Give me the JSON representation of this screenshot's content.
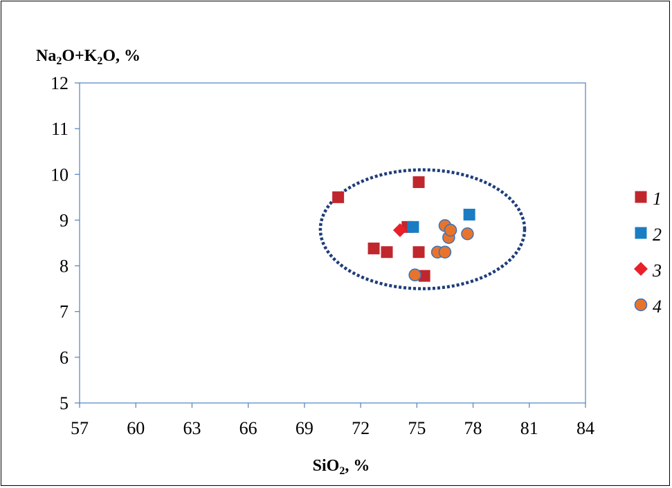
{
  "chart_data": {
    "type": "scatter",
    "x_axis": {
      "label": "SiO",
      "label_sub": "2",
      "label_tail": ", %",
      "range": [
        57,
        84
      ],
      "ticks": [
        "57",
        "60",
        "63",
        "66",
        "69",
        "72",
        "75",
        "78",
        "81",
        "84"
      ]
    },
    "y_axis": {
      "label_parts": [
        "Na",
        "2",
        "O+K",
        "2",
        "O, %"
      ],
      "range": [
        5,
        12
      ],
      "ticks": [
        "5",
        "6",
        "7",
        "8",
        "9",
        "10",
        "11",
        "12"
      ]
    },
    "grid": false,
    "legend_position": "right",
    "series": [
      {
        "name": "1",
        "marker": "square",
        "color": "#c0272d",
        "points": [
          [
            70.8,
            9.5
          ],
          [
            72.7,
            8.38
          ],
          [
            73.4,
            8.3
          ],
          [
            75.1,
            9.83
          ],
          [
            75.1,
            8.3
          ],
          [
            74.5,
            8.85
          ],
          [
            75.4,
            7.78
          ]
        ]
      },
      {
        "name": "2",
        "marker": "square",
        "color": "#1a7dc4",
        "points": [
          [
            74.8,
            8.85
          ],
          [
            77.8,
            9.12
          ]
        ]
      },
      {
        "name": "3",
        "marker": "diamond",
        "color": "#e8202a",
        "points": [
          [
            74.1,
            8.78
          ]
        ]
      },
      {
        "name": "4",
        "marker": "circle",
        "color": "#e8742c",
        "stroke": "#3a73b8",
        "points": [
          [
            76.5,
            8.88
          ],
          [
            76.7,
            8.62
          ],
          [
            76.8,
            8.78
          ],
          [
            76.1,
            8.3
          ],
          [
            76.5,
            8.3
          ],
          [
            77.7,
            8.7
          ],
          [
            74.9,
            7.8
          ]
        ]
      }
    ],
    "annotations": [
      {
        "type": "dotted-ellipse",
        "cx": 75.3,
        "cy": 8.8,
        "rx": 5.45,
        "ry": 1.3,
        "color": "#1f3d7a"
      }
    ]
  }
}
